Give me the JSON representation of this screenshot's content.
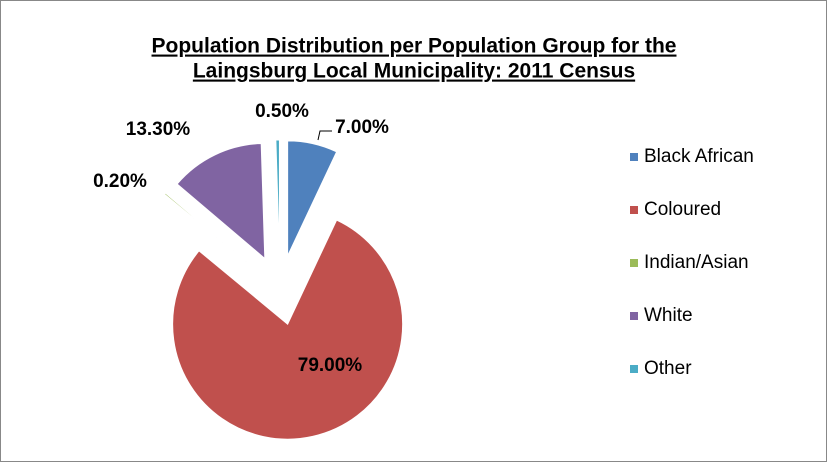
{
  "chart_data": {
    "type": "pie",
    "title": [
      "Population Distribution per Population Group for the",
      "Laingsburg Local Municipality: 2011 Census"
    ],
    "categories": [
      "Black African",
      "Coloured",
      "Indian/Asian",
      "White",
      "Other"
    ],
    "values": [
      7.0,
      79.0,
      0.2,
      13.3,
      0.5
    ],
    "value_labels": [
      "7.00%",
      "79.00%",
      "0.20%",
      "13.30%",
      "0.50%"
    ],
    "colors": [
      "#4f81bd",
      "#c0504d",
      "#9bbb59",
      "#8064a2",
      "#4bacc6"
    ],
    "legend": "right"
  }
}
